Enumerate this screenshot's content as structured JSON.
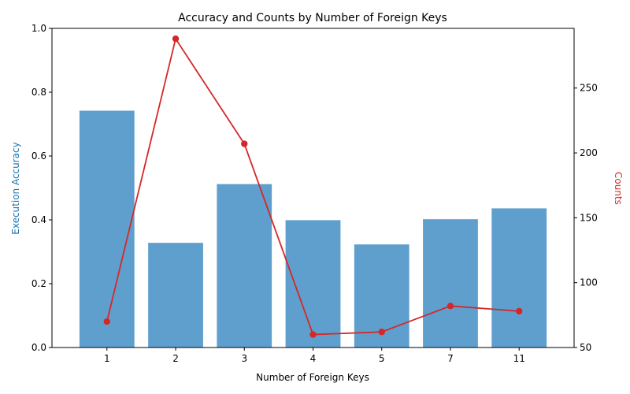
{
  "chart_data": {
    "type": "bar",
    "title": "Accuracy and Counts by Number of Foreign Keys",
    "xlabel": "Number of Foreign Keys",
    "ylabel": "Execution Accuracy",
    "y2label": "Counts",
    "categories": [
      "1",
      "2",
      "3",
      "4",
      "5",
      "7",
      "11"
    ],
    "series": [
      {
        "type": "bar",
        "axis": "left",
        "values": [
          0.742,
          0.328,
          0.512,
          0.399,
          0.323,
          0.402,
          0.436
        ],
        "color": "#5f9fcd"
      },
      {
        "type": "line",
        "axis": "right",
        "values": [
          70,
          288,
          207,
          60,
          62,
          82,
          78
        ],
        "color": "#d62728"
      }
    ],
    "ylim": [
      0,
      1.0
    ],
    "y2lim": [
      50,
      296
    ],
    "yticks": [
      0.0,
      0.2,
      0.4,
      0.6,
      0.8,
      1.0
    ],
    "ytick_labels": [
      "0.0",
      "0.2",
      "0.4",
      "0.6",
      "0.8",
      "1.0"
    ],
    "y2ticks": [
      50,
      100,
      150,
      200,
      250
    ],
    "y2tick_labels": [
      "50",
      "100",
      "150",
      "200",
      "250"
    ],
    "ylabel_color": "#1f77b4",
    "y2label_color": "#d62728",
    "grid": false
  }
}
